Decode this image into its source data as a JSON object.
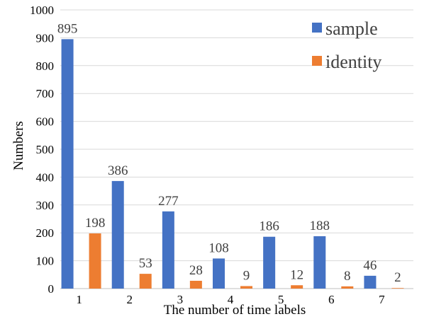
{
  "chart_data": {
    "type": "bar",
    "title": "",
    "xlabel": "The number of time labels",
    "ylabel": "Numbers",
    "categories": [
      "1",
      "2",
      "3",
      "4",
      "5",
      "6",
      "7"
    ],
    "ylim": [
      0,
      1000
    ],
    "yticks": [
      "0",
      "100",
      "200",
      "300",
      "400",
      "500",
      "600",
      "700",
      "800",
      "900",
      "1000"
    ],
    "grid": true,
    "legend_position": "top-right",
    "series": [
      {
        "name": "sample",
        "color": "#4472c4",
        "values": [
          895,
          386,
          277,
          108,
          186,
          188,
          46
        ]
      },
      {
        "name": "identity",
        "color": "#ed7d31",
        "values": [
          198,
          53,
          28,
          9,
          12,
          8,
          2
        ]
      }
    ]
  }
}
